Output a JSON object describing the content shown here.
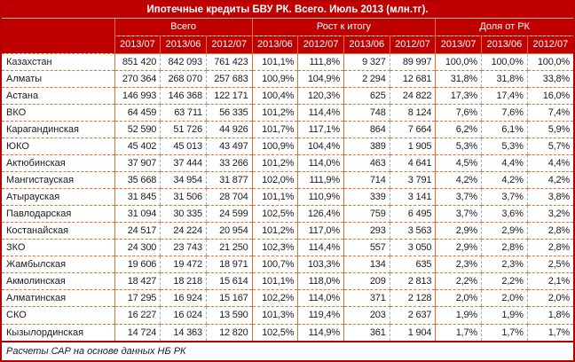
{
  "title": "Ипотечные кредиты БВУ РК. Всего. Июль 2013 (млн.тг).",
  "source_note": "Расчеты САР на основе данных НБ РК",
  "colors": {
    "header_bg": "#c00000",
    "header_text": "#ffffff",
    "orange_line": "#e4702e",
    "blue_line": "#95b3d7",
    "outer_border": "#b40000",
    "text": "#1c1c1c"
  },
  "table": {
    "groups": [
      {
        "label": "Всего",
        "span": 3
      },
      {
        "label": "Рост к итогу",
        "span": 4
      },
      {
        "label": "Доля от РК",
        "span": 3
      }
    ],
    "subheaders": [
      "2013/07",
      "2013/06",
      "2012/07",
      "2013/06",
      "2012/07",
      "2013/06",
      "2012/07",
      "2013/07",
      "2013/06",
      "2012/07"
    ],
    "rows": [
      {
        "region": "Казахстан",
        "values": [
          "851 420",
          "842 093",
          "761 423",
          "101,1%",
          "111,8%",
          "9 327",
          "89 997",
          "100,0%",
          "100,0%",
          "100,0%"
        ]
      },
      {
        "region": "Алматы",
        "values": [
          "270 364",
          "268 070",
          "257 683",
          "100,9%",
          "104,9%",
          "2 294",
          "12 681",
          "31,8%",
          "31,8%",
          "33,8%"
        ]
      },
      {
        "region": "Астана",
        "values": [
          "146 993",
          "146 368",
          "122 171",
          "100,4%",
          "120,3%",
          "625",
          "24 822",
          "17,3%",
          "17,4%",
          "16,0%"
        ]
      },
      {
        "region": "ВКО",
        "values": [
          "64 459",
          "63 711",
          "56 335",
          "101,2%",
          "114,4%",
          "748",
          "8 124",
          "7,6%",
          "7,6%",
          "7,4%"
        ]
      },
      {
        "region": "Карагандинская",
        "values": [
          "52 590",
          "51 726",
          "44 926",
          "101,7%",
          "117,1%",
          "864",
          "7 664",
          "6,2%",
          "6,1%",
          "5,9%"
        ]
      },
      {
        "region": "ЮКО",
        "values": [
          "45 402",
          "45 013",
          "43 497",
          "100,9%",
          "104,4%",
          "389",
          "1 905",
          "5,3%",
          "5,3%",
          "5,7%"
        ]
      },
      {
        "region": "Актюбинская",
        "values": [
          "37 907",
          "37 444",
          "33 266",
          "101,2%",
          "114,0%",
          "463",
          "4 641",
          "4,5%",
          "4,4%",
          "4,4%"
        ]
      },
      {
        "region": "Мангистауская",
        "values": [
          "35 668",
          "34 954",
          "31 877",
          "102,0%",
          "111,9%",
          "714",
          "3 791",
          "4,2%",
          "4,2%",
          "4,2%"
        ]
      },
      {
        "region": "Атырауская",
        "values": [
          "31 845",
          "31 506",
          "28 704",
          "101,1%",
          "110,9%",
          "339",
          "3 141",
          "3,7%",
          "3,7%",
          "3,8%"
        ]
      },
      {
        "region": "Павлодарская",
        "values": [
          "31 094",
          "30 335",
          "24 599",
          "102,5%",
          "126,4%",
          "759",
          "6 495",
          "3,7%",
          "3,6%",
          "3,2%"
        ]
      },
      {
        "region": "Костанайская",
        "values": [
          "24 517",
          "24 224",
          "20 954",
          "101,2%",
          "117,0%",
          "293",
          "3 563",
          "2,9%",
          "2,9%",
          "2,8%"
        ]
      },
      {
        "region": "ЗКО",
        "values": [
          "24 300",
          "23 743",
          "21 250",
          "102,3%",
          "114,4%",
          "557",
          "3 050",
          "2,9%",
          "2,8%",
          "2,8%"
        ]
      },
      {
        "region": "Жамбылская",
        "values": [
          "19 606",
          "19 472",
          "18 971",
          "100,7%",
          "103,3%",
          "134",
          "635",
          "2,3%",
          "2,3%",
          "2,5%"
        ]
      },
      {
        "region": "Акмолинская",
        "values": [
          "18 427",
          "18 218",
          "15 614",
          "101,1%",
          "118,0%",
          "209",
          "2 813",
          "2,2%",
          "2,2%",
          "2,1%"
        ]
      },
      {
        "region": "Алматинская",
        "values": [
          "17 295",
          "16 924",
          "15 167",
          "102,2%",
          "114,0%",
          "371",
          "2 128",
          "2,0%",
          "2,0%",
          "2,0%"
        ]
      },
      {
        "region": "СКО",
        "values": [
          "16 227",
          "16 024",
          "13 590",
          "101,3%",
          "119,4%",
          "203",
          "2 637",
          "1,9%",
          "1,9%",
          "1,8%"
        ]
      },
      {
        "region": "Кызылординская",
        "values": [
          "14 724",
          "14 363",
          "12 820",
          "102,5%",
          "114,9%",
          "361",
          "1 904",
          "1,7%",
          "1,7%",
          "1,7%"
        ]
      }
    ],
    "column_border_styles": [
      "o",
      "b",
      "b",
      "o",
      "o",
      "o",
      "b",
      "o",
      "b",
      "b"
    ]
  }
}
